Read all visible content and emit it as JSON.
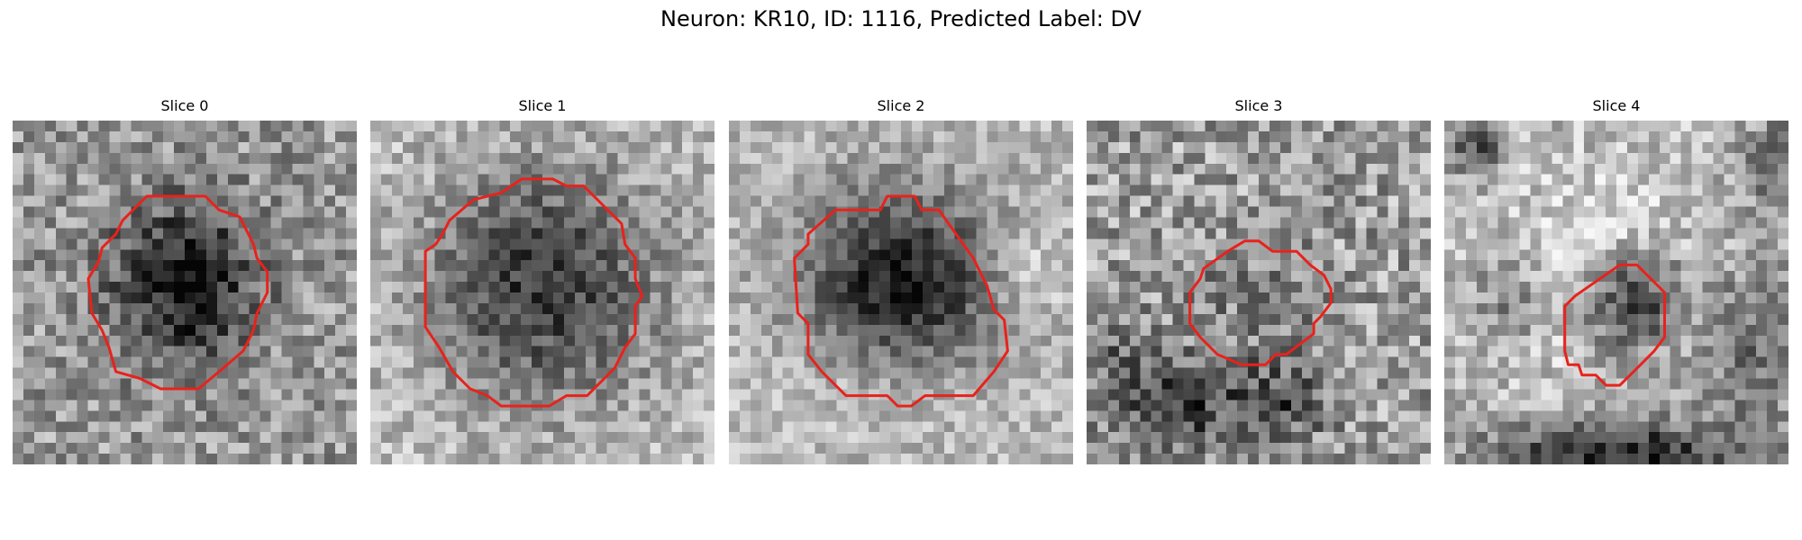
{
  "figure": {
    "title": "Neuron: KR10, ID: 1116, Predicted Label: DV"
  },
  "colors": {
    "contour": "#e8221c",
    "background": "#ffffff",
    "colormap": "grayscale"
  },
  "panels": [
    {
      "title": "Slice 0",
      "description_key": "small dark round cell centred in panel"
    },
    {
      "title": "Slice 1",
      "description_key": "large dark round cell centred in panel"
    },
    {
      "title": "Slice 2",
      "description_key": "dark cell with bright surround"
    },
    {
      "title": "Slice 3",
      "description_key": "faint cell, dark blobs below"
    },
    {
      "title": "Slice 4",
      "description_key": "small cell, dark band at bottom"
    }
  ]
}
